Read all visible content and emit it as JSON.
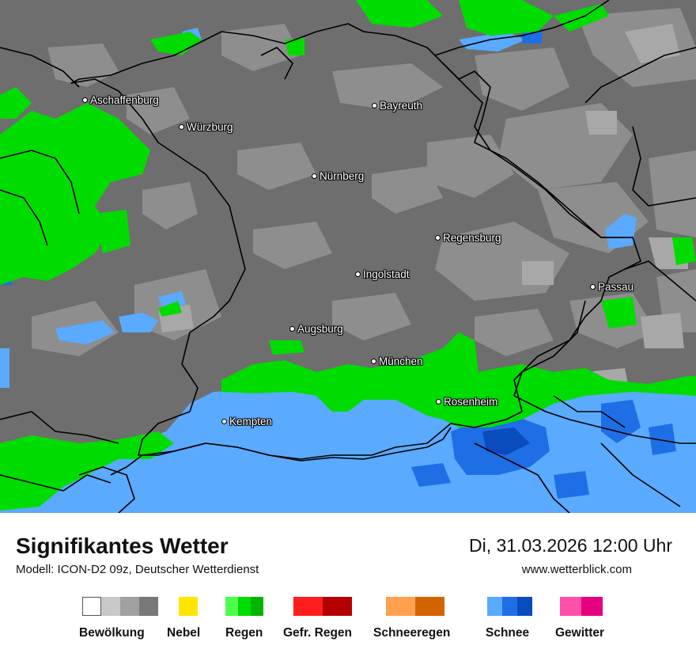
{
  "cities": [
    {
      "name": "Aschaffenburg"
    },
    {
      "name": "Würzburg"
    },
    {
      "name": "Bayreuth"
    },
    {
      "name": "Nürnberg"
    },
    {
      "name": "Regensburg"
    },
    {
      "name": "Ingolstadt"
    },
    {
      "name": "Passau"
    },
    {
      "name": "Augsburg"
    },
    {
      "name": "München"
    },
    {
      "name": "Rosenheim"
    },
    {
      "name": "Kempten"
    }
  ],
  "footer": {
    "title": "Signifikantes Wetter",
    "model": "Modell: ICON-D2 09z, Deutscher Wetterdienst",
    "datetime": "Di, 31.03.2026 12:00 Uhr",
    "website": "www.wetterblick.com"
  },
  "legend": [
    {
      "label": "Bewölkung",
      "colors": [
        "#ffffff",
        "#c8c8c8",
        "#a0a0a0",
        "#787878"
      ]
    },
    {
      "label": "Nebel",
      "colors": [
        "#ffe600"
      ]
    },
    {
      "label": "Regen",
      "colors": [
        "#4cff4c",
        "#00dc00",
        "#00b400"
      ]
    },
    {
      "label": "Gefr. Regen",
      "colors": [
        "#ff1e1e",
        "#b40000"
      ]
    },
    {
      "label": "Schneeregen",
      "colors": [
        "#ffa050",
        "#d26400"
      ]
    },
    {
      "label": "Schnee",
      "colors": [
        "#5aaaff",
        "#1e6ee6",
        "#0a4bbe"
      ]
    },
    {
      "label": "Gewitter",
      "colors": [
        "#ff50aa",
        "#e6007d"
      ]
    }
  ],
  "colors": {
    "cloud_dark": "#6e6e6e",
    "cloud_mid": "#8c8c8c",
    "cloud_light": "#a6a6a6",
    "rain": "#00dc00",
    "snow_light": "#5aaaff",
    "snow_dark": "#1e6ee6",
    "border": "#000000"
  }
}
